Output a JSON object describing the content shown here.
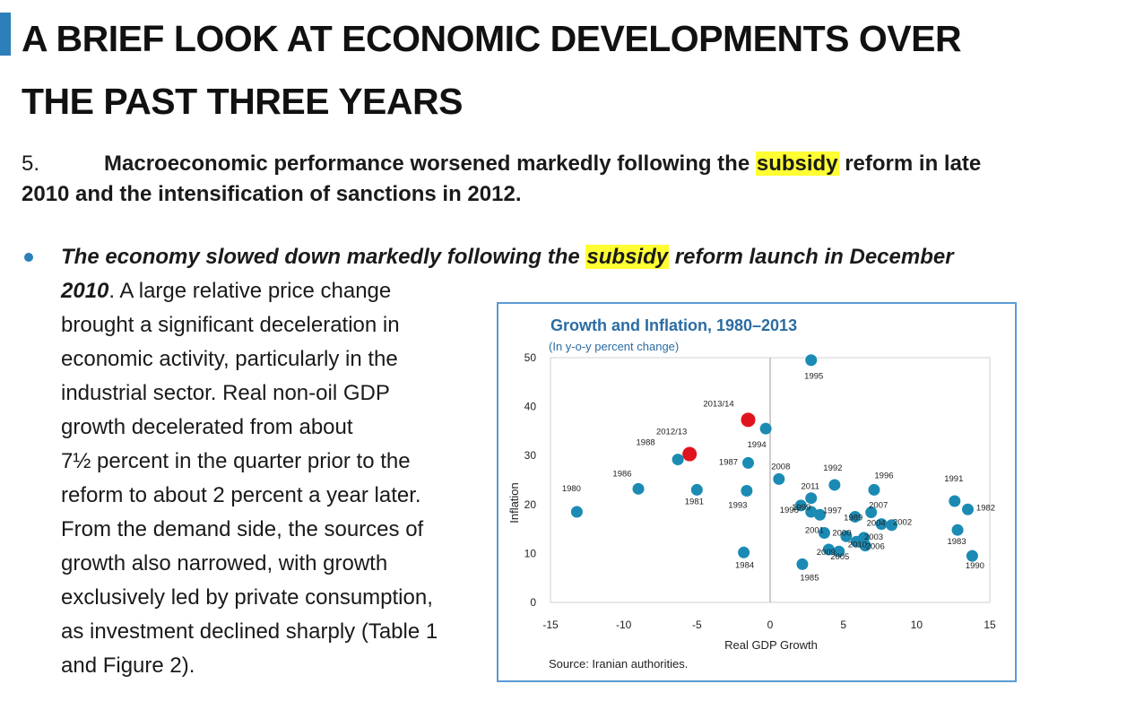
{
  "heading": {
    "line1": "A BRIEF LOOK AT ECONOMIC DEVELOPMENTS OVER",
    "line2": "THE PAST THREE YEARS"
  },
  "paragraph5": {
    "number": "5.",
    "text_before": "Macroeconomic performance worsened markedly following the ",
    "highlight": "subsidy",
    "text_after_line1": " reform in late",
    "line2": "2010 and the intensification of sanctions in 2012."
  },
  "bullet": {
    "lead_before": "The economy slowed down markedly following the ",
    "lead_highlight": "subsidy",
    "lead_after": " reform launch in December",
    "lead_end": "2010",
    "body_lines": [
      ". A large relative price change",
      "brought a significant deceleration in",
      "economic activity, particularly in the",
      "industrial sector.  Real non-oil GDP",
      "growth decelerated from about",
      "7½ percent in the quarter prior to the",
      "reform to about 2 percent a year later.",
      "From the demand side, the sources of",
      "growth also narrowed, with growth",
      "exclusively led by private consumption,",
      "as investment declined sharply (Table 1",
      "and Figure 2)."
    ]
  },
  "colors": {
    "accent": "#2c7fb8",
    "point": "#1b8bb4",
    "highlight_point": "#e0141e",
    "chart_title": "#2b6ca3",
    "highlight": "#ffff33"
  },
  "chart_data": {
    "type": "scatter",
    "title": "Growth and Inflation, 1980–2013",
    "subtitle": "(In y-o-y percent change)",
    "xlabel": "Real GDP Growth",
    "ylabel": "Inflation",
    "source": "Source: Iranian authorities.",
    "xlim": [
      -15,
      15
    ],
    "ylim": [
      0,
      50
    ],
    "xticks": [
      "-15",
      "-10",
      "-5",
      "0",
      "5",
      "10",
      "15"
    ],
    "yticks": [
      "0",
      "10",
      "20",
      "30",
      "40",
      "50"
    ],
    "grid": false,
    "points": [
      {
        "year": "1980",
        "x": -13.2,
        "y": 18.5,
        "highlight": false
      },
      {
        "year": "1981",
        "x": -5.0,
        "y": 23.0,
        "highlight": false
      },
      {
        "year": "1982",
        "x": 13.5,
        "y": 19.0,
        "highlight": false
      },
      {
        "year": "1983",
        "x": 12.8,
        "y": 14.8,
        "highlight": false
      },
      {
        "year": "1984",
        "x": -1.8,
        "y": 10.2,
        "highlight": false
      },
      {
        "year": "1985",
        "x": 2.2,
        "y": 7.8,
        "highlight": false
      },
      {
        "year": "1986",
        "x": -9.0,
        "y": 23.2,
        "highlight": false
      },
      {
        "year": "1987",
        "x": -1.5,
        "y": 28.5,
        "highlight": false
      },
      {
        "year": "1988",
        "x": -6.3,
        "y": 29.2,
        "highlight": false
      },
      {
        "year": "1989",
        "x": 5.8,
        "y": 17.5,
        "highlight": false
      },
      {
        "year": "1990",
        "x": 13.8,
        "y": 9.5,
        "highlight": false
      },
      {
        "year": "1991",
        "x": 12.6,
        "y": 20.7,
        "highlight": false
      },
      {
        "year": "1992",
        "x": 4.4,
        "y": 24.0,
        "highlight": false
      },
      {
        "year": "1993",
        "x": -1.6,
        "y": 22.8,
        "highlight": false
      },
      {
        "year": "1994",
        "x": -0.3,
        "y": 35.5,
        "highlight": false
      },
      {
        "year": "1995",
        "x": 2.8,
        "y": 49.5,
        "highlight": false
      },
      {
        "year": "1996",
        "x": 7.1,
        "y": 23.0,
        "highlight": false
      },
      {
        "year": "1997",
        "x": 3.4,
        "y": 17.9,
        "highlight": false
      },
      {
        "year": "1998",
        "x": 2.1,
        "y": 19.8,
        "highlight": false
      },
      {
        "year": "1999",
        "x": 2.8,
        "y": 18.5,
        "highlight": false
      },
      {
        "year": "2000",
        "x": 5.2,
        "y": 13.5,
        "highlight": false
      },
      {
        "year": "2001",
        "x": 3.7,
        "y": 14.2,
        "highlight": false
      },
      {
        "year": "2002",
        "x": 8.3,
        "y": 15.8,
        "highlight": false
      },
      {
        "year": "2003",
        "x": 6.4,
        "y": 13.2,
        "highlight": false
      },
      {
        "year": "2004",
        "x": 7.6,
        "y": 16.0,
        "highlight": false
      },
      {
        "year": "2005",
        "x": 4.7,
        "y": 10.4,
        "highlight": false
      },
      {
        "year": "2006",
        "x": 6.5,
        "y": 11.6,
        "highlight": false
      },
      {
        "year": "2007",
        "x": 6.9,
        "y": 18.4,
        "highlight": false
      },
      {
        "year": "2008",
        "x": 0.6,
        "y": 25.2,
        "highlight": false
      },
      {
        "year": "2009",
        "x": 4.0,
        "y": 10.8,
        "highlight": false
      },
      {
        "year": "2010",
        "x": 5.9,
        "y": 12.4,
        "highlight": false
      },
      {
        "year": "2011",
        "x": 2.8,
        "y": 21.3,
        "highlight": false
      },
      {
        "year": "2012/13",
        "x": -5.5,
        "y": 30.3,
        "highlight": true
      },
      {
        "year": "2013/14",
        "x": -1.5,
        "y": 37.3,
        "highlight": true
      }
    ]
  }
}
